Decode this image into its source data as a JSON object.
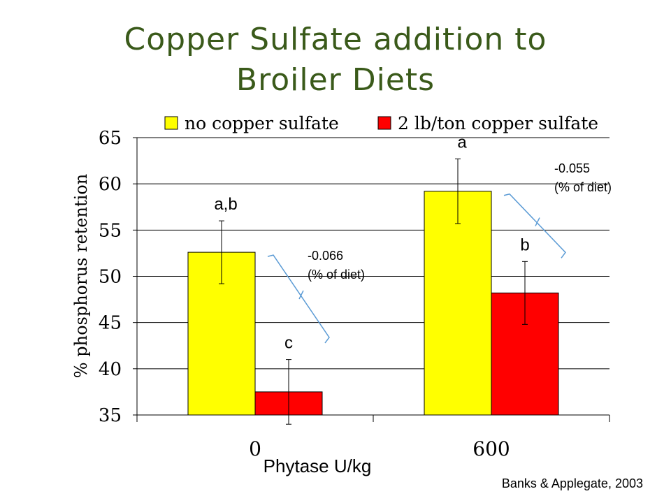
{
  "slide": {
    "title_line1": "Copper Sulfate addition to",
    "title_line2": "Broiler Diets",
    "citation": "Banks & Applegate, 2003"
  },
  "chart_data": {
    "type": "bar",
    "title": "",
    "xlabel": "Phytase U/kg",
    "ylabel": "% phosphorus retention",
    "categories": [
      "0",
      "600"
    ],
    "ylim": [
      35,
      65
    ],
    "yticks": [
      35,
      40,
      45,
      50,
      55,
      60,
      65
    ],
    "grid": true,
    "legend_position": "top",
    "series": [
      {
        "name": "no copper sulfate",
        "color": "#ffff00",
        "values": [
          52.6,
          59.2
        ],
        "error": [
          3.4,
          3.5
        ],
        "labels": [
          "a,b",
          "a"
        ]
      },
      {
        "name": "2 lb/ton copper sulfate",
        "color": "#ff0000",
        "values": [
          37.5,
          48.2
        ],
        "error": [
          3.5,
          3.4
        ],
        "labels": [
          "c",
          "b"
        ]
      }
    ],
    "annotations": [
      {
        "category": "0",
        "line1": "-0.066",
        "line2": "(% of diet)"
      },
      {
        "category": "600",
        "line1": "-0.055",
        "line2": "(% of diet)"
      }
    ]
  }
}
